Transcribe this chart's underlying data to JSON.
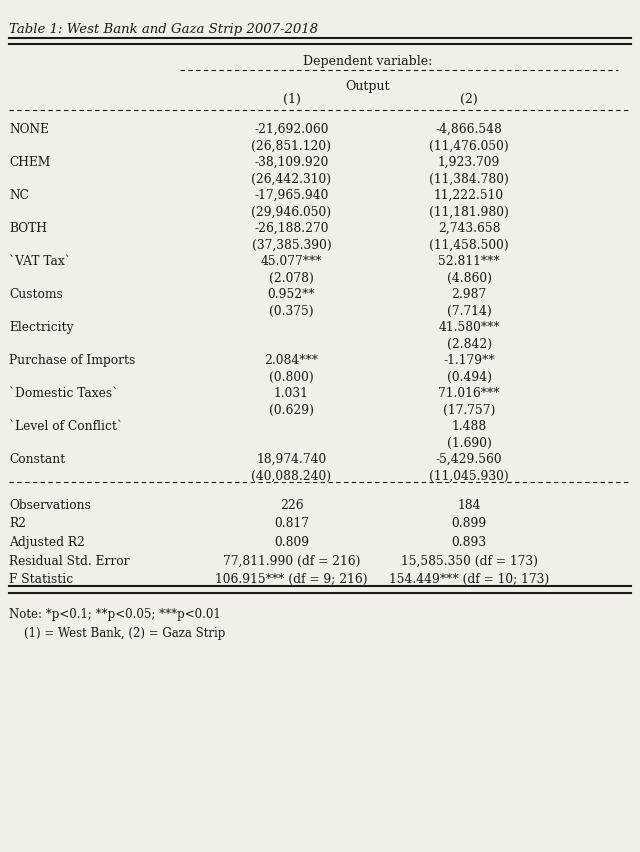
{
  "title": "Table 1: West Bank and Gaza Strip 2007-2018",
  "bg_color": "#f2efe9",
  "text_color": "#1a1a1a",
  "font_family": "DejaVu Serif",
  "rows": [
    {
      "label": "NONE",
      "col1": "-21,692.060",
      "col2": "-4,866.548"
    },
    {
      "label": "",
      "col1": "(26,851.120)",
      "col2": "(11,476.050)"
    },
    {
      "label": "CHEM",
      "col1": "-38,109.920",
      "col2": "1,923.709"
    },
    {
      "label": "",
      "col1": "(26,442.310)",
      "col2": "(11,384.780)"
    },
    {
      "label": "NC",
      "col1": "-17,965.940",
      "col2": "11,222.510"
    },
    {
      "label": "",
      "col1": "(29,946.050)",
      "col2": "(11,181.980)"
    },
    {
      "label": "BOTH",
      "col1": "-26,188.270",
      "col2": "2,743.658"
    },
    {
      "label": "",
      "col1": "(37,385.390)",
      "col2": "(11,458.500)"
    },
    {
      "label": "`VAT Tax`",
      "col1": "45.077***",
      "col2": "52.811***"
    },
    {
      "label": "",
      "col1": "(2.078)",
      "col2": "(4.860)"
    },
    {
      "label": "Customs",
      "col1": "0.952**",
      "col2": "2.987"
    },
    {
      "label": "",
      "col1": "(0.375)",
      "col2": "(7.714)"
    },
    {
      "label": "Electricity",
      "col1": "",
      "col2": "41.580***"
    },
    {
      "label": "",
      "col1": "",
      "col2": "(2.842)"
    },
    {
      "label": "Purchase of Imports",
      "col1": "2.084***",
      "col2": "-1.179**"
    },
    {
      "label": "",
      "col1": "(0.800)",
      "col2": "(0.494)"
    },
    {
      "label": "`Domestic Taxes`",
      "col1": "1.031",
      "col2": "71.016***"
    },
    {
      "label": "",
      "col1": "(0.629)",
      "col2": "(17.757)"
    },
    {
      "label": "`Level of Conflict`",
      "col1": "",
      "col2": "1.488"
    },
    {
      "label": "",
      "col1": "",
      "col2": "(1.690)"
    },
    {
      "label": "Constant",
      "col1": "18,974.740",
      "col2": "-5,429.560"
    },
    {
      "label": "",
      "col1": "(40,088.240)",
      "col2": "(11,045.930)"
    }
  ],
  "stats": [
    {
      "label": "Observations",
      "col1": "226",
      "col2": "184"
    },
    {
      "label": "R2",
      "col1": "0.817",
      "col2": "0.899"
    },
    {
      "label": "Adjusted R2",
      "col1": "0.809",
      "col2": "0.893"
    },
    {
      "label": "Residual Std. Error",
      "col1": "77,811.990 (df = 216)",
      "col2": "15,585.350 (df = 173)"
    },
    {
      "label": "F Statistic",
      "col1": "106.915*** (df = 9; 216)",
      "col2": "154.449*** (df = 10; 173)"
    }
  ],
  "note1": "Note: *p<0.1; **p<0.05; ***p<0.01",
  "note2": "    (1) = West Bank, (2) = Gaza Strip"
}
